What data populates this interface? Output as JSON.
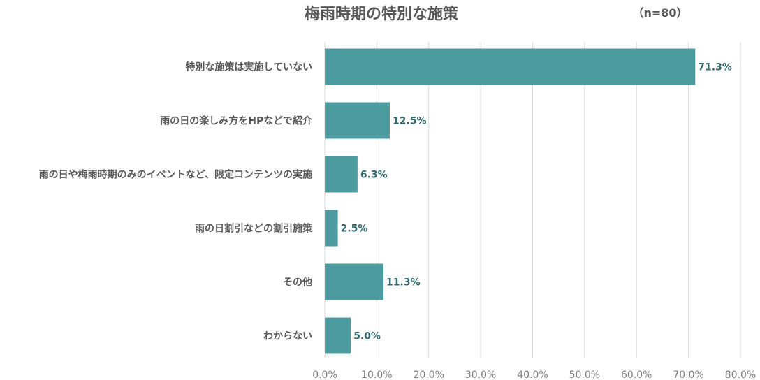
{
  "chart_data": {
    "type": "bar",
    "orientation": "horizontal",
    "title": "梅雨時期の特別な施策",
    "subtitle": "（n=80）",
    "categories": [
      "特別な施策は実施していない",
      "雨の日の楽しみ方をHPなどで紹介",
      "雨の日や梅雨時期のみのイベントなど、限定コンテンツの実施",
      "雨の日割引などの割引施策",
      "その他",
      "わからない"
    ],
    "values": [
      71.3,
      12.5,
      6.3,
      2.5,
      11.3,
      5.0
    ],
    "data_labels": [
      "71.3%",
      "12.5%",
      "6.3%",
      "2.5%",
      "11.3%",
      "5.0%"
    ],
    "xlim": [
      0,
      80
    ],
    "x_ticks": [
      0,
      10,
      20,
      30,
      40,
      50,
      60,
      70,
      80
    ],
    "x_tick_labels": [
      "0.0%",
      "10.0%",
      "20.0%",
      "30.0%",
      "40.0%",
      "50.0%",
      "60.0%",
      "70.0%",
      "80.0%"
    ],
    "grid": true,
    "bar_color": "#4c9c9f",
    "label_color": "#2f6b6d"
  }
}
